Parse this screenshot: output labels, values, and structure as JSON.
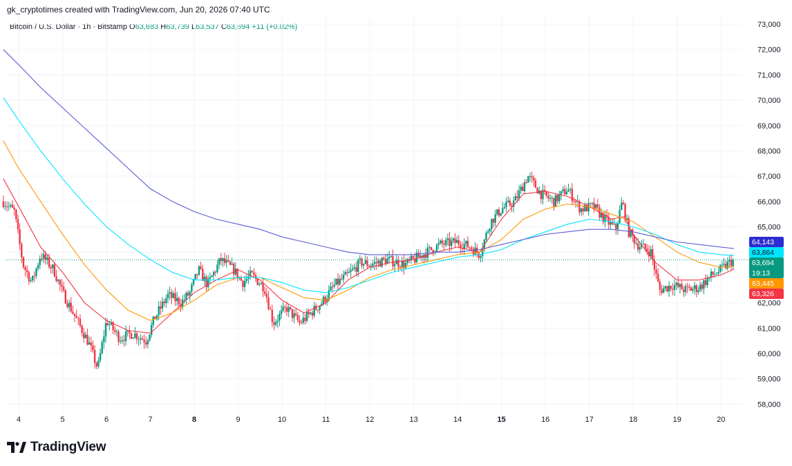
{
  "header": {
    "caption": "gk_cryptotimes created with TradingView.com, Jun 20, 2026 07:40 UTC",
    "symbol": "Bitcoin / U.S. Dollar · 1h · Bitstamp",
    "open_label": "O",
    "open": "63,683",
    "high_label": "H",
    "high": "63,739",
    "low_label": "L",
    "low": "63,537",
    "close_label": "C",
    "close": "63,694",
    "change": "+11 (+0.02%)"
  },
  "brand": {
    "name": "TradingView",
    "icon": "tradingview-logo-icon"
  },
  "colors": {
    "up": "#089981",
    "down": "#f23645",
    "ma_red": "#f23645",
    "ma_orange": "#ff9800",
    "ma_cyan": "#00e5ff",
    "ma_blue": "#5b5bd6",
    "grid": "#f0f3fa",
    "text": "#131722"
  },
  "price_tags": [
    {
      "label": "64,143",
      "color": "#2c2cd0",
      "text_color": "#ffffff"
    },
    {
      "label": "63,864",
      "color": "#00e5ff",
      "text_color": "#131722"
    },
    {
      "label": "63,694",
      "sub": "19:13",
      "color": "#089981",
      "text_color": "#ffffff"
    },
    {
      "label": "63,445",
      "color": "#ff9800",
      "text_color": "#ffffff"
    },
    {
      "label": "63,326",
      "color": "#f23645",
      "text_color": "#ffffff"
    }
  ],
  "chart_data": {
    "type": "candlestick",
    "title": "Bitcoin / U.S. Dollar · 1h · Bitstamp",
    "ylim": [
      57600,
      73300
    ],
    "y_ticks": [
      "58,000",
      "59,000",
      "60,000",
      "61,000",
      "62,000",
      "63,000",
      "64,000",
      "65,000",
      "66,000",
      "67,000",
      "68,000",
      "69,000",
      "70,000",
      "71,000",
      "72,000",
      "73,000"
    ],
    "y_tick_values": [
      58000,
      59000,
      60000,
      61000,
      62000,
      63000,
      64000,
      65000,
      66000,
      67000,
      68000,
      69000,
      70000,
      71000,
      72000,
      73000
    ],
    "x_range_days": [
      3.7,
      20.5
    ],
    "x_ticks": [
      {
        "day": 4,
        "label": "4",
        "bold": false
      },
      {
        "day": 5,
        "label": "5",
        "bold": false
      },
      {
        "day": 6,
        "label": "6",
        "bold": false
      },
      {
        "day": 7,
        "label": "7",
        "bold": false
      },
      {
        "day": 8,
        "label": "8",
        "bold": true
      },
      {
        "day": 9,
        "label": "9",
        "bold": false
      },
      {
        "day": 10,
        "label": "10",
        "bold": false
      },
      {
        "day": 11,
        "label": "11",
        "bold": false
      },
      {
        "day": 12,
        "label": "12",
        "bold": false
      },
      {
        "day": 13,
        "label": "13",
        "bold": false
      },
      {
        "day": 14,
        "label": "14",
        "bold": false
      },
      {
        "day": 15,
        "label": "15",
        "bold": true
      },
      {
        "day": 16,
        "label": "16",
        "bold": false
      },
      {
        "day": 17,
        "label": "17",
        "bold": false
      },
      {
        "day": 18,
        "label": "18",
        "bold": false
      },
      {
        "day": 19,
        "label": "19",
        "bold": false
      },
      {
        "day": 20,
        "label": "20",
        "bold": false
      }
    ],
    "last_price": 63694,
    "price_path": [
      [
        3.65,
        66000
      ],
      [
        3.9,
        65600
      ],
      [
        4.1,
        63500
      ],
      [
        4.3,
        62800
      ],
      [
        4.5,
        63900
      ],
      [
        4.8,
        63300
      ],
      [
        5.0,
        62400
      ],
      [
        5.3,
        61400
      ],
      [
        5.6,
        60400
      ],
      [
        5.8,
        59400
      ],
      [
        6.0,
        61300
      ],
      [
        6.3,
        60600
      ],
      [
        6.6,
        60800
      ],
      [
        6.9,
        60500
      ],
      [
        7.1,
        61400
      ],
      [
        7.4,
        62300
      ],
      [
        7.7,
        62000
      ],
      [
        7.9,
        62400
      ],
      [
        8.1,
        63300
      ],
      [
        8.3,
        62700
      ],
      [
        8.6,
        63700
      ],
      [
        8.9,
        63300
      ],
      [
        9.1,
        62800
      ],
      [
        9.3,
        63100
      ],
      [
        9.6,
        62600
      ],
      [
        9.8,
        61200
      ],
      [
        10.1,
        61800
      ],
      [
        10.4,
        61200
      ],
      [
        10.6,
        61500
      ],
      [
        10.9,
        62000
      ],
      [
        11.2,
        62700
      ],
      [
        11.5,
        63100
      ],
      [
        11.8,
        63600
      ],
      [
        12.0,
        63500
      ],
      [
        12.4,
        63700
      ],
      [
        12.8,
        63500
      ],
      [
        13.2,
        63900
      ],
      [
        13.6,
        64300
      ],
      [
        14.0,
        64400
      ],
      [
        14.3,
        64200
      ],
      [
        14.5,
        63900
      ],
      [
        14.75,
        65200
      ],
      [
        15.0,
        65700
      ],
      [
        15.3,
        66000
      ],
      [
        15.6,
        67000
      ],
      [
        15.9,
        66300
      ],
      [
        16.2,
        66000
      ],
      [
        16.5,
        66500
      ],
      [
        16.8,
        65700
      ],
      [
        17.1,
        65800
      ],
      [
        17.35,
        65300
      ],
      [
        17.6,
        64900
      ],
      [
        17.75,
        66000
      ],
      [
        17.9,
        64800
      ],
      [
        18.1,
        64300
      ],
      [
        18.4,
        64000
      ],
      [
        18.6,
        62500
      ],
      [
        18.9,
        62700
      ],
      [
        19.2,
        62500
      ],
      [
        19.5,
        62600
      ],
      [
        19.8,
        63100
      ],
      [
        20.0,
        63300
      ],
      [
        20.2,
        63600
      ],
      [
        20.3,
        63694
      ]
    ],
    "series": [
      {
        "name": "",
        "color": "#f23645",
        "points": [
          [
            3.65,
            66900
          ],
          [
            4.0,
            65800
          ],
          [
            4.5,
            64200
          ],
          [
            5.0,
            63200
          ],
          [
            5.5,
            62000
          ],
          [
            6.0,
            61300
          ],
          [
            6.5,
            60900
          ],
          [
            7.0,
            60800
          ],
          [
            7.5,
            61600
          ],
          [
            8.0,
            62400
          ],
          [
            8.5,
            62900
          ],
          [
            9.0,
            63300
          ],
          [
            9.5,
            62900
          ],
          [
            10.0,
            62100
          ],
          [
            10.5,
            61600
          ],
          [
            11.0,
            62000
          ],
          [
            11.5,
            62900
          ],
          [
            12.0,
            63400
          ],
          [
            12.5,
            63600
          ],
          [
            13.0,
            63700
          ],
          [
            13.5,
            64000
          ],
          [
            14.0,
            64200
          ],
          [
            14.5,
            64000
          ],
          [
            15.0,
            65300
          ],
          [
            15.5,
            66300
          ],
          [
            16.0,
            66400
          ],
          [
            16.5,
            66200
          ],
          [
            17.0,
            65800
          ],
          [
            17.5,
            65300
          ],
          [
            17.8,
            65400
          ],
          [
            18.0,
            64700
          ],
          [
            18.5,
            63600
          ],
          [
            19.0,
            62900
          ],
          [
            19.5,
            62900
          ],
          [
            20.0,
            63100
          ],
          [
            20.3,
            63326
          ]
        ]
      },
      {
        "name": "",
        "color": "#ff9800",
        "points": [
          [
            3.65,
            68400
          ],
          [
            4.0,
            67300
          ],
          [
            4.5,
            66000
          ],
          [
            5.0,
            64700
          ],
          [
            5.5,
            63500
          ],
          [
            6.0,
            62500
          ],
          [
            6.5,
            61700
          ],
          [
            7.0,
            61300
          ],
          [
            7.5,
            61600
          ],
          [
            8.0,
            62100
          ],
          [
            8.5,
            62700
          ],
          [
            9.0,
            63000
          ],
          [
            9.5,
            63000
          ],
          [
            10.0,
            62600
          ],
          [
            10.5,
            62200
          ],
          [
            11.0,
            62100
          ],
          [
            11.5,
            62500
          ],
          [
            12.0,
            63000
          ],
          [
            12.5,
            63300
          ],
          [
            13.0,
            63500
          ],
          [
            13.5,
            63700
          ],
          [
            14.0,
            63900
          ],
          [
            14.5,
            64000
          ],
          [
            15.0,
            64500
          ],
          [
            15.5,
            65300
          ],
          [
            16.0,
            65700
          ],
          [
            16.5,
            65900
          ],
          [
            17.0,
            65800
          ],
          [
            17.5,
            65500
          ],
          [
            18.0,
            65200
          ],
          [
            18.5,
            64600
          ],
          [
            19.0,
            64000
          ],
          [
            19.5,
            63600
          ],
          [
            20.0,
            63400
          ],
          [
            20.3,
            63445
          ]
        ]
      },
      {
        "name": "",
        "color": "#00e5ff",
        "points": [
          [
            3.65,
            70100
          ],
          [
            4.0,
            69200
          ],
          [
            4.5,
            68000
          ],
          [
            5.0,
            66900
          ],
          [
            5.5,
            65900
          ],
          [
            6.0,
            65000
          ],
          [
            6.5,
            64300
          ],
          [
            7.0,
            63700
          ],
          [
            7.5,
            63200
          ],
          [
            8.0,
            62900
          ],
          [
            8.5,
            62900
          ],
          [
            9.0,
            63000
          ],
          [
            9.5,
            63000
          ],
          [
            10.0,
            62800
          ],
          [
            10.5,
            62500
          ],
          [
            11.0,
            62400
          ],
          [
            11.5,
            62600
          ],
          [
            12.0,
            62900
          ],
          [
            12.5,
            63200
          ],
          [
            13.0,
            63400
          ],
          [
            13.5,
            63600
          ],
          [
            14.0,
            63800
          ],
          [
            14.5,
            63900
          ],
          [
            15.0,
            64100
          ],
          [
            15.5,
            64500
          ],
          [
            16.0,
            64800
          ],
          [
            16.5,
            65100
          ],
          [
            17.0,
            65300
          ],
          [
            17.5,
            65200
          ],
          [
            18.0,
            65000
          ],
          [
            18.5,
            64700
          ],
          [
            19.0,
            64300
          ],
          [
            19.5,
            64000
          ],
          [
            20.0,
            63900
          ],
          [
            20.3,
            63864
          ]
        ]
      },
      {
        "name": "",
        "color": "#5b5bd6",
        "points": [
          [
            3.65,
            72000
          ],
          [
            4.0,
            71400
          ],
          [
            4.5,
            70500
          ],
          [
            5.0,
            69700
          ],
          [
            5.5,
            68900
          ],
          [
            6.0,
            68100
          ],
          [
            6.5,
            67300
          ],
          [
            7.0,
            66500
          ],
          [
            7.5,
            66000
          ],
          [
            8.0,
            65600
          ],
          [
            8.5,
            65300
          ],
          [
            9.0,
            65100
          ],
          [
            9.5,
            64900
          ],
          [
            10.0,
            64600
          ],
          [
            10.5,
            64400
          ],
          [
            11.0,
            64200
          ],
          [
            11.5,
            64000
          ],
          [
            12.0,
            63900
          ],
          [
            12.5,
            63900
          ],
          [
            13.0,
            63900
          ],
          [
            13.5,
            64000
          ],
          [
            14.0,
            64000
          ],
          [
            14.5,
            64100
          ],
          [
            15.0,
            64300
          ],
          [
            15.5,
            64500
          ],
          [
            16.0,
            64700
          ],
          [
            16.5,
            64800
          ],
          [
            17.0,
            64900
          ],
          [
            17.5,
            64900
          ],
          [
            18.0,
            64800
          ],
          [
            18.5,
            64600
          ],
          [
            19.0,
            64400
          ],
          [
            19.5,
            64300
          ],
          [
            20.0,
            64200
          ],
          [
            20.3,
            64143
          ]
        ]
      }
    ]
  }
}
